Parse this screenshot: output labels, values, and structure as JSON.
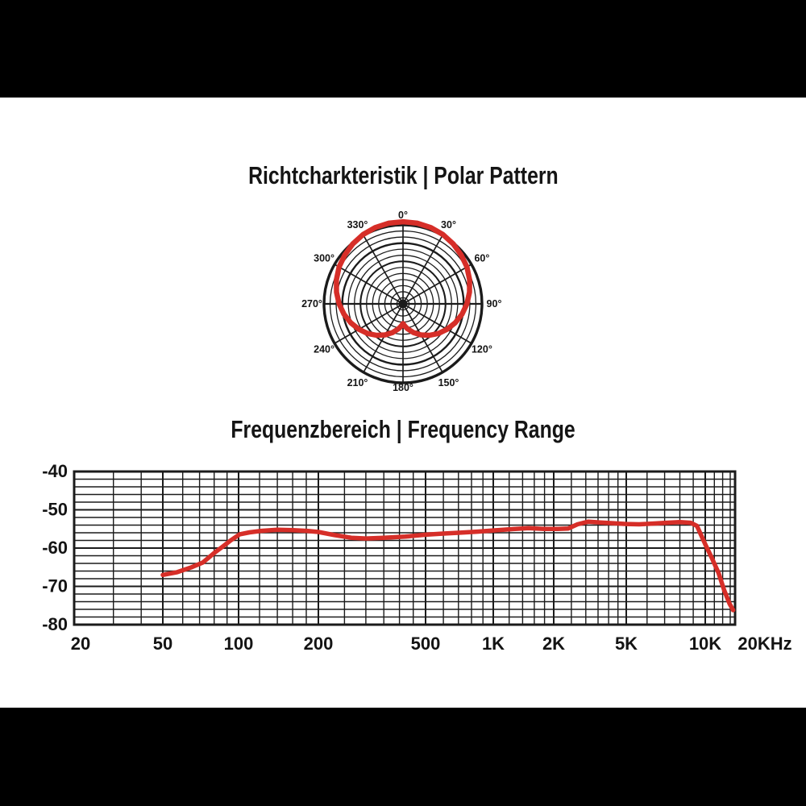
{
  "letterbox_color": "#000000",
  "content_background": "#ffffff",
  "colors": {
    "curve_red": "#d62e28",
    "grid": "#1b1b1b",
    "text": "#141414"
  },
  "chart_data": [
    {
      "type": "line",
      "coordinate_system": "polar",
      "title": "Richtcharkteristik | Polar Pattern",
      "pattern": "cardioid",
      "angle_labels": [
        "0°",
        "30°",
        "60°",
        "90°",
        "120°",
        "150°",
        "180°",
        "210°",
        "240°",
        "270°",
        "300°",
        "330°"
      ],
      "grid": {
        "rings": 13,
        "spoke_step_deg": 30
      },
      "series": [
        {
          "name": "polar-response",
          "symmetric_mirror": true,
          "points_deg_r": [
            [
              0,
              1.04
            ],
            [
              10,
              1.037
            ],
            [
              20,
              1.028
            ],
            [
              30,
              1.013
            ],
            [
              40,
              0.99
            ],
            [
              50,
              0.962
            ],
            [
              60,
              0.934
            ],
            [
              70,
              0.897
            ],
            [
              80,
              0.855
            ],
            [
              90,
              0.809
            ],
            [
              100,
              0.758
            ],
            [
              110,
              0.703
            ],
            [
              120,
              0.645
            ],
            [
              130,
              0.584
            ],
            [
              140,
              0.52
            ],
            [
              150,
              0.454
            ],
            [
              160,
              0.387
            ],
            [
              170,
              0.319
            ],
            [
              175,
              0.284
            ],
            [
              180,
              0.25
            ]
          ]
        }
      ]
    },
    {
      "type": "line",
      "x_scale": "log",
      "title": "Frequenzbereich | Frequency Range",
      "x_tick_labels": [
        "20",
        "50",
        "100",
        "200",
        "500",
        "1K",
        "2K",
        "5K",
        "10K",
        "20KHz"
      ],
      "y_tick_labels": [
        "-40",
        "-50",
        "-60",
        "-70",
        "-80"
      ],
      "xlim_hz": [
        20,
        20000
      ],
      "ylim_db": [
        -80,
        -40
      ],
      "grid": "on",
      "legend": "none",
      "series": [
        {
          "name": "frequency-response",
          "points_hz_db": [
            [
              50,
              -67
            ],
            [
              57,
              -66.3
            ],
            [
              65,
              -65
            ],
            [
              72,
              -63.8
            ],
            [
              81,
              -61
            ],
            [
              87,
              -59.5
            ],
            [
              93,
              -58
            ],
            [
              101,
              -56.4
            ],
            [
              110,
              -55.9
            ],
            [
              122,
              -55.5
            ],
            [
              140,
              -55.2
            ],
            [
              160,
              -55.3
            ],
            [
              180,
              -55.5
            ],
            [
              200,
              -55.8
            ],
            [
              230,
              -56.6
            ],
            [
              265,
              -57.3
            ],
            [
              300,
              -57.5
            ],
            [
              350,
              -57.3
            ],
            [
              420,
              -57
            ],
            [
              500,
              -56.5
            ],
            [
              600,
              -56.2
            ],
            [
              700,
              -56
            ],
            [
              850,
              -55.7
            ],
            [
              1000,
              -55.4
            ],
            [
              1200,
              -55.1
            ],
            [
              1500,
              -54.8
            ],
            [
              1800,
              -55
            ],
            [
              2100,
              -55
            ],
            [
              2400,
              -54.9
            ],
            [
              2700,
              -53.8
            ],
            [
              3100,
              -53.1
            ],
            [
              3600,
              -53.3
            ],
            [
              4200,
              -53.5
            ],
            [
              5000,
              -53.7
            ],
            [
              5600,
              -53.8
            ],
            [
              6300,
              -53.6
            ],
            [
              7100,
              -53.4
            ],
            [
              8000,
              -53.2
            ],
            [
              8800,
              -53.4
            ],
            [
              9300,
              -54.2
            ],
            [
              10000,
              -59
            ],
            [
              10700,
              -62.5
            ],
            [
              11500,
              -66.5
            ],
            [
              12200,
              -71
            ],
            [
              12900,
              -74.5
            ],
            [
              13400,
              -76.2
            ]
          ]
        }
      ]
    }
  ]
}
